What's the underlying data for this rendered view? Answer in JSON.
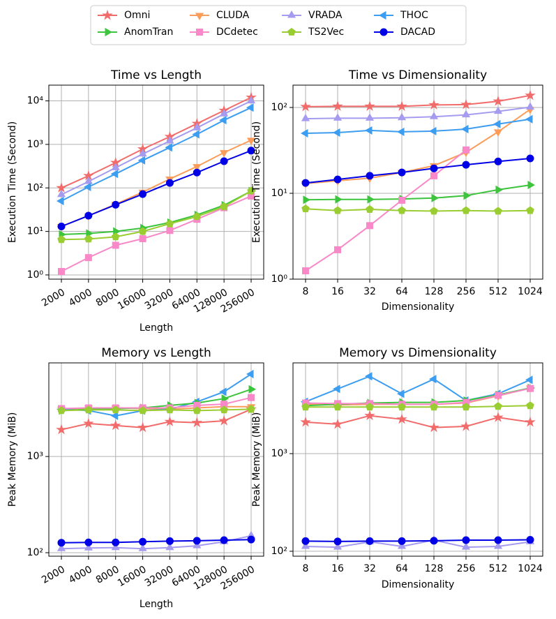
{
  "chart_data": [
    {
      "type": "line",
      "title": "Time vs Length",
      "xlabel": "Length",
      "ylabel": "Execution Time (Second)",
      "log_y": true,
      "grid": true,
      "xtick_rotation": 30,
      "categories": [
        "2000",
        "4000",
        "8000",
        "16000",
        "32000",
        "64000",
        "128000",
        "256000"
      ],
      "ylim": [
        0.8,
        23000
      ],
      "yticks": [
        {
          "value": 1,
          "label": "10⁰"
        },
        {
          "value": 10,
          "label": "10¹"
        },
        {
          "value": 100,
          "label": "10²"
        },
        {
          "value": 1000,
          "label": "10³"
        },
        {
          "value": 10000,
          "label": "10⁴"
        }
      ],
      "series": [
        {
          "name": "Omni",
          "color": "#f26b6b",
          "marker": "star",
          "values": [
            100,
            190,
            380,
            780,
            1500,
            3000,
            6000,
            12000
          ]
        },
        {
          "name": "CLUDA",
          "color": "#fb9d5a",
          "marker": "triangle-down",
          "values": [
            13,
            23,
            42,
            80,
            160,
            310,
            650,
            1250
          ]
        },
        {
          "name": "VRADA",
          "color": "#a59cf0",
          "marker": "triangle-up",
          "values": [
            70,
            140,
            290,
            600,
            1200,
            2400,
            5000,
            10000
          ]
        },
        {
          "name": "THOC",
          "color": "#3d9df0",
          "marker": "triangle-left",
          "values": [
            50,
            105,
            210,
            430,
            850,
            1700,
            3600,
            7000
          ]
        },
        {
          "name": "AnomTran",
          "color": "#3cc43c",
          "marker": "triangle-right",
          "values": [
            8.5,
            9,
            10,
            12,
            16,
            24,
            40,
            85
          ]
        },
        {
          "name": "DCdetec",
          "color": "#f888c8",
          "marker": "square",
          "values": [
            1.2,
            2.5,
            4.8,
            6.8,
            10.5,
            19,
            35,
            65
          ]
        },
        {
          "name": "TS2Vec",
          "color": "#9acd32",
          "marker": "pentagon",
          "values": [
            6.5,
            6.7,
            7.5,
            10,
            15,
            22,
            37,
            85
          ]
        },
        {
          "name": "DACAD",
          "color": "#0000e6",
          "marker": "circle",
          "values": [
            13,
            23,
            41,
            72,
            130,
            225,
            410,
            720
          ]
        }
      ]
    },
    {
      "type": "line",
      "title": "Time vs Dimensionality",
      "xlabel": "Dimensionality",
      "ylabel": "Execution Time (Second)",
      "log_y": true,
      "grid": true,
      "xtick_rotation": 0,
      "categories": [
        "8",
        "16",
        "32",
        "64",
        "128",
        "256",
        "512",
        "1024"
      ],
      "ylim": [
        1,
        182
      ],
      "yticks": [
        {
          "value": 1,
          "label": "10⁰"
        },
        {
          "value": 10,
          "label": "10¹"
        },
        {
          "value": 100,
          "label": "10²"
        }
      ],
      "series": [
        {
          "name": "Omni",
          "color": "#f26b6b",
          "marker": "star",
          "values": [
            102,
            103,
            103,
            103,
            107,
            108,
            118,
            138
          ]
        },
        {
          "name": "CLUDA",
          "color": "#fb9d5a",
          "marker": "triangle-down",
          "values": [
            13,
            14,
            15,
            17.5,
            21,
            30,
            52,
            95
          ]
        },
        {
          "name": "VRADA",
          "color": "#a59cf0",
          "marker": "triangle-up",
          "values": [
            74,
            75,
            75,
            76,
            78,
            82,
            90,
            101
          ]
        },
        {
          "name": "THOC",
          "color": "#3d9df0",
          "marker": "triangle-left",
          "values": [
            50,
            51,
            54,
            52,
            53,
            56,
            64,
            73
          ]
        },
        {
          "name": "AnomTran",
          "color": "#3cc43c",
          "marker": "triangle-right",
          "values": [
            8.4,
            8.5,
            8.5,
            8.6,
            8.8,
            9.4,
            11,
            12.5
          ]
        },
        {
          "name": "DCdetec",
          "color": "#f888c8",
          "marker": "square",
          "values": [
            1.25,
            2.2,
            4.2,
            8.3,
            16,
            32,
            null,
            null
          ]
        },
        {
          "name": "TS2Vec",
          "color": "#9acd32",
          "marker": "pentagon",
          "values": [
            6.6,
            6.3,
            6.5,
            6.3,
            6.2,
            6.3,
            6.2,
            6.3
          ]
        },
        {
          "name": "DACAD",
          "color": "#0000e6",
          "marker": "circle",
          "values": [
            13.2,
            14.5,
            16,
            17.5,
            19.5,
            21.5,
            23.5,
            25.5
          ]
        }
      ]
    },
    {
      "type": "line",
      "title": "Memory vs Length",
      "xlabel": "Length",
      "ylabel": "Peak Memory (MiB)",
      "log_y": true,
      "grid": true,
      "xtick_rotation": 30,
      "categories": [
        "2000",
        "4000",
        "8000",
        "16000",
        "32000",
        "64000",
        "128000",
        "256000"
      ],
      "ylim": [
        92,
        9400
      ],
      "yticks": [
        {
          "value": 100,
          "label": "10²"
        },
        {
          "value": 1000,
          "label": "10³"
        }
      ],
      "series": [
        {
          "name": "Omni",
          "color": "#f26b6b",
          "marker": "star",
          "values": [
            1900,
            2200,
            2100,
            2000,
            2300,
            2250,
            2350,
            3100
          ]
        },
        {
          "name": "CLUDA",
          "color": "#fb9d5a",
          "marker": "triangle-down",
          "values": [
            3100,
            3200,
            3200,
            3150,
            3100,
            3200,
            3300,
            3300
          ]
        },
        {
          "name": "VRADA",
          "color": "#a59cf0",
          "marker": "triangle-up",
          "values": [
            110,
            112,
            113,
            110,
            113,
            118,
            130,
            150
          ]
        },
        {
          "name": "THOC",
          "color": "#3d9df0",
          "marker": "triangle-left",
          "values": [
            3100,
            3000,
            2650,
            3000,
            3100,
            3700,
            4700,
            7200
          ]
        },
        {
          "name": "AnomTran",
          "color": "#3cc43c",
          "marker": "triangle-right",
          "values": [
            3000,
            3100,
            3150,
            3200,
            3400,
            3600,
            4000,
            5000
          ]
        },
        {
          "name": "DCdetec",
          "color": "#f888c8",
          "marker": "square",
          "values": [
            3150,
            3200,
            3200,
            3200,
            3200,
            3400,
            3500,
            4100
          ]
        },
        {
          "name": "TS2Vec",
          "color": "#9acd32",
          "marker": "pentagon",
          "values": [
            3000,
            3050,
            3050,
            3000,
            3050,
            3000,
            3050,
            3100
          ]
        },
        {
          "name": "DACAD",
          "color": "#0000e6",
          "marker": "circle",
          "values": [
            127,
            128,
            128,
            130,
            132,
            133,
            135,
            137
          ]
        }
      ]
    },
    {
      "type": "line",
      "title": "Memory vs Dimensionality",
      "xlabel": "Dimensionality",
      "ylabel": "Peak Memory (MiB)",
      "log_y": true,
      "grid": true,
      "xtick_rotation": 0,
      "categories": [
        "8",
        "16",
        "32",
        "64",
        "128",
        "256",
        "512",
        "1024"
      ],
      "ylim": [
        89,
        8500
      ],
      "yticks": [
        {
          "value": 100,
          "label": "10²"
        },
        {
          "value": 1000,
          "label": "10³"
        }
      ],
      "series": [
        {
          "name": "Omni",
          "color": "#f26b6b",
          "marker": "star",
          "values": [
            2100,
            2000,
            2450,
            2250,
            1850,
            1900,
            2350,
            2100
          ]
        },
        {
          "name": "CLUDA",
          "color": "#fb9d5a",
          "marker": "triangle-down",
          "values": [
            3200,
            3150,
            3200,
            3200,
            3200,
            3300,
            3900,
            4700
          ]
        },
        {
          "name": "VRADA",
          "color": "#a59cf0",
          "marker": "triangle-up",
          "values": [
            112,
            110,
            125,
            112,
            130,
            110,
            112,
            125
          ]
        },
        {
          "name": "THOC",
          "color": "#3d9df0",
          "marker": "triangle-left",
          "values": [
            3400,
            4600,
            6200,
            4100,
            5800,
            3500,
            4100,
            5700
          ]
        },
        {
          "name": "AnomTran",
          "color": "#3cc43c",
          "marker": "triangle-right",
          "values": [
            3100,
            3200,
            3300,
            3350,
            3350,
            3500,
            4000,
            4700
          ]
        },
        {
          "name": "DCdetec",
          "color": "#f888c8",
          "marker": "square",
          "values": [
            3300,
            3250,
            3250,
            3200,
            3200,
            3350,
            3950,
            4650
          ]
        },
        {
          "name": "TS2Vec",
          "color": "#9acd32",
          "marker": "pentagon",
          "values": [
            3000,
            3000,
            3000,
            3000,
            3000,
            3000,
            3050,
            3100
          ]
        },
        {
          "name": "DACAD",
          "color": "#0000e6",
          "marker": "circle",
          "values": [
            127,
            126,
            127,
            127,
            128,
            130,
            130,
            131
          ]
        }
      ]
    }
  ]
}
